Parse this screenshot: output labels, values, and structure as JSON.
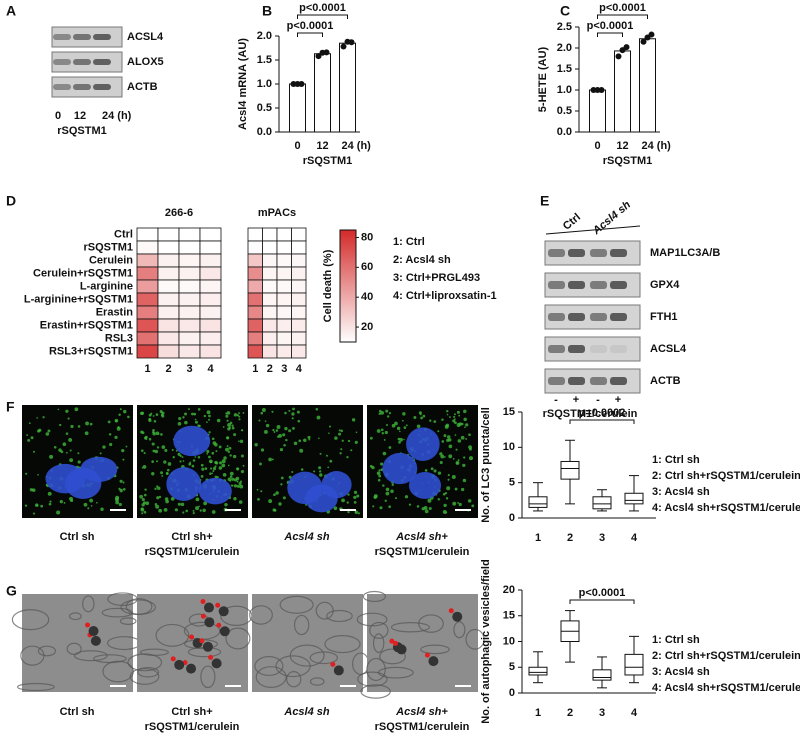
{
  "panel_labels": [
    "A",
    "B",
    "C",
    "D",
    "E",
    "F",
    "G"
  ],
  "blot_a": {
    "proteins": [
      "ACSL4",
      "ALOX5",
      "ACTB"
    ],
    "lanes": [
      "0",
      "12",
      "24 (h)"
    ],
    "treatment": "rSQSTM1"
  },
  "blot_e": {
    "groups": [
      "Ctrl",
      "Acsl4 sh"
    ],
    "proteins": [
      "MAP1LC3A/B",
      "GPX4",
      "FTH1",
      "ACSL4",
      "ACTB"
    ],
    "signs": [
      "-",
      "+",
      "-",
      "+"
    ],
    "treatment": "rSQSTM1/cerulein"
  },
  "images_f": {
    "captions": [
      [
        "Ctrl sh"
      ],
      [
        "Ctrl sh+",
        "rSQSTM1/cerulein"
      ],
      [
        "Acsl4 sh"
      ],
      [
        "Acsl4 sh+",
        "rSQSTM1/cerulein"
      ]
    ]
  },
  "images_g": {
    "captions": [
      [
        "Ctrl sh"
      ],
      [
        "Ctrl sh+",
        "rSQSTM1/cerulein"
      ],
      [
        "Acsl4 sh"
      ],
      [
        "Acsl4 sh+",
        "rSQSTM1/cerulein"
      ]
    ]
  },
  "chart_data": [
    {
      "type": "bar",
      "ylabel": "Acsl4 mRNA (AU)",
      "xlabel": "rSQSTM1",
      "categories": [
        "0",
        "12",
        "24 (h)"
      ],
      "values": [
        1.0,
        1.63,
        1.85
      ],
      "points": [
        [
          1.0,
          1.0,
          1.0
        ],
        [
          1.58,
          1.65,
          1.66
        ],
        [
          1.78,
          1.88,
          1.87
        ]
      ],
      "ylim": [
        0,
        2.0
      ],
      "yticks": [
        {
          "value": 0,
          "label": "0.0"
        },
        {
          "value": 0.5,
          "label": "0.5"
        },
        {
          "value": 1.0,
          "label": "1.0"
        },
        {
          "value": 1.5,
          "label": "1.5"
        },
        {
          "value": 2.0,
          "label": "2.0"
        }
      ],
      "annotations": [
        "p<0.0001",
        "p<0.0001"
      ],
      "color": "#ffffff"
    },
    {
      "type": "bar",
      "ylabel": "5-HETE (AU)",
      "xlabel": "rSQSTM1",
      "categories": [
        "0",
        "12",
        "24 (h)"
      ],
      "values": [
        1.0,
        1.93,
        2.22
      ],
      "points": [
        [
          1.0,
          1.0,
          1.0
        ],
        [
          1.8,
          1.95,
          2.02
        ],
        [
          2.15,
          2.25,
          2.32
        ]
      ],
      "ylim": [
        0,
        2.5
      ],
      "yticks": [
        {
          "value": 0,
          "label": "0.0"
        },
        {
          "value": 0.5,
          "label": "0.5"
        },
        {
          "value": 1.0,
          "label": "1.0"
        },
        {
          "value": 1.5,
          "label": "1.5"
        },
        {
          "value": 2.0,
          "label": "2.0"
        },
        {
          "value": 2.5,
          "label": "2.5"
        }
      ],
      "annotations": [
        "p<0.0001",
        "p<0.0001"
      ],
      "color": "#ffffff"
    },
    {
      "type": "heatmap",
      "rows": [
        "Ctrl",
        "rSQSTM1",
        "Cerulein",
        "Cerulein+rSQSTM1",
        "L-arginine",
        "L-arginine+rSQSTM1",
        "Erastin",
        "Erastin+rSQSTM1",
        "RSL3",
        "RSL3+rSQSTM1"
      ],
      "columns": [
        "1",
        "2",
        "3",
        "4"
      ],
      "panels": [
        {
          "title": "266-6",
          "values": [
            [
              10,
              10,
              10,
              10
            ],
            [
              12,
              10,
              10,
              10
            ],
            [
              35,
              15,
              14,
              15
            ],
            [
              55,
              15,
              15,
              18
            ],
            [
              45,
              12,
              12,
              14
            ],
            [
              65,
              15,
              15,
              16
            ],
            [
              55,
              15,
              15,
              15
            ],
            [
              70,
              20,
              18,
              20
            ],
            [
              60,
              18,
              15,
              16
            ],
            [
              75,
              22,
              18,
              20
            ]
          ]
        },
        {
          "title": "mPACs",
          "values": [
            [
              10,
              10,
              10,
              10
            ],
            [
              11,
              10,
              10,
              10
            ],
            [
              30,
              13,
              12,
              13
            ],
            [
              50,
              14,
              14,
              15
            ],
            [
              40,
              12,
              12,
              13
            ],
            [
              60,
              14,
              14,
              15
            ],
            [
              52,
              14,
              13,
              14
            ],
            [
              65,
              18,
              16,
              17
            ],
            [
              55,
              16,
              14,
              15
            ],
            [
              70,
              20,
              17,
              18
            ]
          ]
        }
      ],
      "colorbar": {
        "label": "Cell death (%)",
        "zlim": [
          10,
          85
        ],
        "zticks": [
          20,
          40,
          60,
          80
        ]
      },
      "color": "#d42a2a",
      "legend": [
        "1: Ctrl",
        "2: Acsl4 sh",
        "3: Ctrl+PRGL493",
        "4: Ctrl+liproxsatin-1"
      ]
    },
    {
      "type": "box",
      "ylabel": "No. of LC3 puncta/cell",
      "categories": [
        "1",
        "2",
        "3",
        "4"
      ],
      "boxes": [
        {
          "min": 1,
          "q1": 1.5,
          "median": 2,
          "q3": 3,
          "max": 5
        },
        {
          "min": 2,
          "q1": 5.5,
          "median": 7,
          "q3": 8,
          "max": 11
        },
        {
          "min": 1,
          "q1": 1.3,
          "median": 2,
          "q3": 3,
          "max": 4
        },
        {
          "min": 1,
          "q1": 2,
          "median": 2.5,
          "q3": 3.5,
          "max": 6
        }
      ],
      "ylim": [
        0,
        15
      ],
      "yticks": [
        0,
        5,
        10,
        15
      ],
      "annotations": [
        "p=0.0002"
      ],
      "legend": [
        "1: Ctrl sh",
        "2: Ctrl sh+rSQSTM1/cerulein",
        "3: Acsl4 sh",
        "4: Acsl4 sh+rSQSTM1/cerulein"
      ]
    },
    {
      "type": "box",
      "ylabel": "No. of autophagic vesicles/field",
      "categories": [
        "1",
        "2",
        "3",
        "4"
      ],
      "boxes": [
        {
          "min": 2,
          "q1": 3.5,
          "median": 4,
          "q3": 5,
          "max": 8
        },
        {
          "min": 6,
          "q1": 10,
          "median": 12,
          "q3": 14,
          "max": 16
        },
        {
          "min": 1,
          "q1": 2.5,
          "median": 3,
          "q3": 4.5,
          "max": 7
        },
        {
          "min": 2,
          "q1": 3.5,
          "median": 5,
          "q3": 7.5,
          "max": 11
        }
      ],
      "ylim": [
        0,
        20
      ],
      "yticks": [
        0,
        5,
        10,
        15,
        20
      ],
      "annotations": [
        "p<0.0001"
      ],
      "legend": [
        "1: Ctrl sh",
        "2: Ctrl sh+rSQSTM1/cerulein",
        "3: Acsl4 sh",
        "4: Acsl4 sh+rSQSTM1/cerulein"
      ]
    }
  ]
}
